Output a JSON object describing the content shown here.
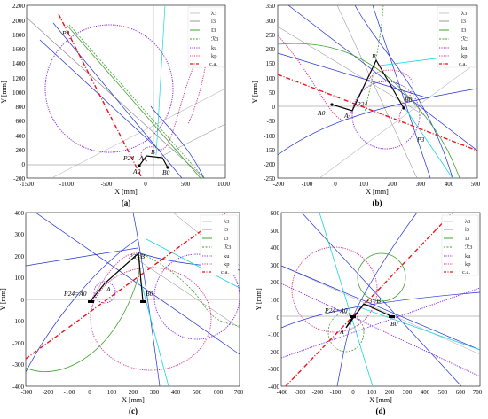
{
  "figure": {
    "legend_labels": {
      "lambda3": "λ3",
      "l3": "l3",
      "I3": "I3",
      "R3": "ℛ3",
      "ku": "ku",
      "kp": "kp",
      "ca": "c.a."
    },
    "colors": {
      "lambda3": "#b9b9b9",
      "l3": "#7f7f7f",
      "I3": "#3fa02e",
      "R3": "#3fa02e",
      "ku": "#8a2be2",
      "kp": "#d23c8c",
      "ca": "#e8141e",
      "blue": "#1f2fd6",
      "cyan": "#18d6dc",
      "mechanism": "#000000"
    },
    "panels": [
      {
        "id": "a",
        "caption": "(a)",
        "xlabel": "X [mm]",
        "ylabel": "Y [mm]",
        "xlim": [
          -1500,
          1000
        ],
        "ylim": [
          -200,
          2200
        ],
        "xticks": [
          "-1500",
          "-1000",
          "-500",
          "0",
          "500",
          "1000"
        ],
        "yticks": [
          "-200",
          "0",
          "200",
          "400",
          "600",
          "800",
          "1000",
          "1200",
          "1400",
          "1600",
          "1800",
          "2000",
          "2200"
        ],
        "xtick_values": [
          -1500,
          -1000,
          -500,
          0,
          500,
          1000
        ],
        "ytick_values": [
          -200,
          0,
          200,
          400,
          600,
          800,
          1000,
          1200,
          1400,
          1600,
          1800,
          2000,
          2200
        ],
        "legend": true,
        "point_labels": [
          "P3",
          "B",
          "P24",
          "A",
          "A0",
          "B0"
        ]
      },
      {
        "id": "b",
        "caption": "(b)",
        "xlabel": "X [mm]",
        "ylabel": "Y [mm]",
        "xlim": [
          -200,
          500
        ],
        "ylim": [
          -250,
          350
        ],
        "xticks": [
          "-200",
          "-100",
          "0",
          "100",
          "200",
          "300",
          "400",
          "500"
        ],
        "yticks": [
          "-250",
          "-200",
          "-150",
          "-100",
          "-50",
          "0",
          "50",
          "100",
          "150",
          "200",
          "250",
          "300",
          "350"
        ],
        "xtick_values": [
          -200,
          -100,
          0,
          100,
          200,
          300,
          400,
          500
        ],
        "ytick_values": [
          -250,
          -200,
          -150,
          -100,
          -50,
          0,
          50,
          100,
          150,
          200,
          250,
          300,
          350
        ],
        "legend": true,
        "point_labels": [
          "B",
          "A0",
          "A",
          "P24",
          "B0",
          "P3"
        ]
      },
      {
        "id": "c",
        "caption": "(c)",
        "xlabel": "X [mm]",
        "ylabel": "Y [mm]",
        "xlim": [
          -300,
          700
        ],
        "ylim": [
          -400,
          400
        ],
        "xticks": [
          "-300",
          "-200",
          "-100",
          "0",
          "100",
          "200",
          "300",
          "400",
          "500",
          "600",
          "700"
        ],
        "yticks": [
          "-400",
          "-300",
          "-200",
          "-100",
          "0",
          "100",
          "200",
          "300",
          "400"
        ],
        "xtick_values": [
          -300,
          -200,
          -100,
          0,
          100,
          200,
          300,
          400,
          500,
          600,
          700
        ],
        "ytick_values": [
          -400,
          -300,
          -200,
          -100,
          0,
          100,
          200,
          300,
          400
        ],
        "legend": true,
        "point_labels": [
          "P3=B",
          "P24=A0",
          "A",
          "B0"
        ]
      },
      {
        "id": "d",
        "caption": "(d)",
        "xlabel": "X [mm]",
        "ylabel": "Y [mm]",
        "xlim": [
          -400,
          700
        ],
        "ylim": [
          -400,
          600
        ],
        "xticks": [
          "-400",
          "-300",
          "-200",
          "-100",
          "0",
          "100",
          "200",
          "300",
          "400",
          "500",
          "600",
          "700"
        ],
        "yticks": [
          "-400",
          "-300",
          "-200",
          "-100",
          "0",
          "100",
          "200",
          "300",
          "400",
          "500",
          "600"
        ],
        "xtick_values": [
          -400,
          -300,
          -200,
          -100,
          0,
          100,
          200,
          300,
          400,
          500,
          600,
          700
        ],
        "ytick_values": [
          -400,
          -300,
          -200,
          -100,
          0,
          100,
          200,
          300,
          400,
          500,
          600
        ],
        "legend": true,
        "point_labels": [
          "P3=B",
          "P24=A0",
          "A",
          "B0"
        ]
      }
    ]
  }
}
